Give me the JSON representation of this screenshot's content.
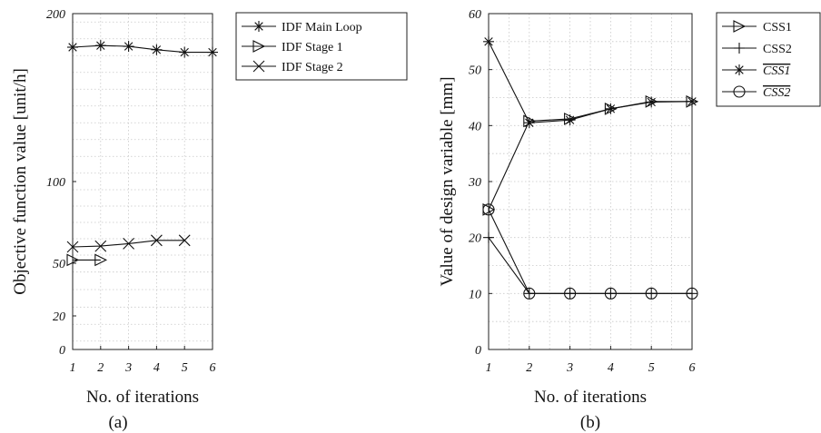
{
  "chart_data": [
    {
      "type": "line",
      "panel_label": "(a)",
      "xlabel": "No. of iterations",
      "ylabel": "Objective function value [unit/h]",
      "x_ticks": [
        "1",
        "2",
        "3",
        "4",
        "5",
        "6"
      ],
      "y_ticks": [
        "0",
        "20",
        "50",
        "100",
        "200"
      ],
      "xlim": [
        1,
        6
      ],
      "grid": true,
      "legend_position": "outside-right",
      "series": [
        {
          "name": "IDF Main Loop",
          "marker": "asterisk",
          "x": [
            1,
            2,
            3,
            4,
            5,
            6
          ],
          "y": [
            180,
            181,
            180.5,
            178.5,
            177,
            177
          ]
        },
        {
          "name": "IDF Stage 1",
          "marker": "triangle-right",
          "x": [
            1,
            2
          ],
          "y": [
            52,
            52
          ]
        },
        {
          "name": "IDF Stage 2",
          "marker": "x",
          "x": [
            1,
            2,
            3,
            4,
            5
          ],
          "y": [
            60,
            60.5,
            62,
            64,
            64
          ]
        }
      ]
    },
    {
      "type": "line",
      "panel_label": "(b)",
      "xlabel": "No. of iterations",
      "ylabel": "Value of design variable [mm]",
      "x_ticks": [
        "1",
        "2",
        "3",
        "4",
        "5",
        "6"
      ],
      "y_ticks": [
        "0",
        "10",
        "20",
        "30",
        "40",
        "50",
        "60"
      ],
      "xlim": [
        1,
        6
      ],
      "ylim": [
        0,
        60
      ],
      "grid": true,
      "legend_position": "outside-right",
      "series": [
        {
          "name": "CSS1",
          "overline": false,
          "marker": "triangle-right",
          "x": [
            1,
            2,
            3,
            4,
            5,
            6
          ],
          "y": [
            25,
            40.8,
            41.2,
            43,
            44.3,
            44.3
          ]
        },
        {
          "name": "CSS2",
          "overline": false,
          "marker": "plus",
          "x": [
            1,
            2,
            3,
            4,
            5,
            6
          ],
          "y": [
            20,
            10,
            10,
            10,
            10,
            10
          ]
        },
        {
          "name": "CSS1",
          "overline": true,
          "marker": "asterisk",
          "x": [
            1,
            2,
            3,
            4,
            5,
            6
          ],
          "y": [
            55,
            40.5,
            41,
            43,
            44.2,
            44.3
          ]
        },
        {
          "name": "CSS2",
          "overline": true,
          "marker": "circle",
          "x": [
            1,
            2,
            3,
            4,
            5,
            6
          ],
          "y": [
            25,
            10,
            10,
            10,
            10,
            10
          ]
        }
      ]
    }
  ]
}
